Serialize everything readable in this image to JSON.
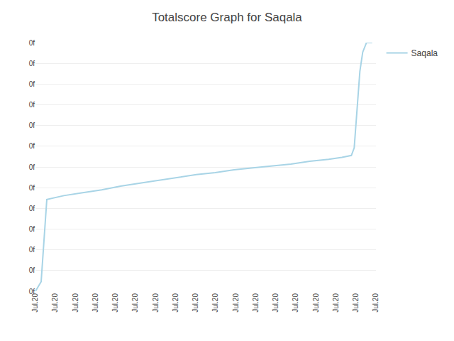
{
  "chart_data": {
    "type": "line",
    "title": "Totalscore Graph for Saqala",
    "x": [
      0,
      0.3,
      0.6,
      1.5,
      2.5,
      3.5,
      4.5,
      5.5,
      6.5,
      7.5,
      8.5,
      9.5,
      10.5,
      11.5,
      12.5,
      13.5,
      14.5,
      15.5,
      16.2,
      16.7,
      16.85,
      17.0,
      17.15,
      17.3,
      17.5,
      17.8
    ],
    "series": [
      {
        "name": "Saqala",
        "color": "#a8d4e6",
        "values": [
          0,
          0.5,
          4.8,
          5.0,
          5.15,
          5.3,
          5.5,
          5.65,
          5.8,
          5.95,
          6.1,
          6.2,
          6.35,
          6.45,
          6.55,
          6.65,
          6.8,
          6.9,
          7.0,
          7.1,
          7.5,
          9.5,
          11.5,
          12.5,
          13.0,
          13.0
        ]
      }
    ],
    "xlim": [
      0,
      18
    ],
    "xticks": [
      {
        "value": 0,
        "label": "Jul.20"
      },
      {
        "value": 1.0588235294117647,
        "label": "Jul.20"
      },
      {
        "value": 2.1176470588235294,
        "label": "Jul.20"
      },
      {
        "value": 3.176470588235294,
        "label": "Jul.20"
      },
      {
        "value": 4.235294117647059,
        "label": "Jul.20"
      },
      {
        "value": 5.294117647058823,
        "label": "Jul.20"
      },
      {
        "value": 6.352941176470588,
        "label": "Jul.20"
      },
      {
        "value": 7.411764705882353,
        "label": "Jul.20"
      },
      {
        "value": 8.470588235294118,
        "label": "Jul.20"
      },
      {
        "value": 9.529411764705882,
        "label": "Jul.20"
      },
      {
        "value": 10.588235294117647,
        "label": "Jul.20"
      },
      {
        "value": 11.647058823529411,
        "label": "Jul.20"
      },
      {
        "value": 12.705882352941176,
        "label": "Jul.20"
      },
      {
        "value": 13.764705882352942,
        "label": "Jul.20"
      },
      {
        "value": 14.823529411764707,
        "label": "Jul.20"
      },
      {
        "value": 15.882352941176471,
        "label": "Jul.20"
      },
      {
        "value": 16.941176470588236,
        "label": "Jul.20"
      },
      {
        "value": 18,
        "label": "Jul.20"
      }
    ],
    "ylim": [
      0,
      13
    ],
    "yticks": [
      {
        "value": 0,
        "label": "0f"
      },
      {
        "value": 1.0833333333333333,
        "label": "0f"
      },
      {
        "value": 2.1666666666666665,
        "label": "0f"
      },
      {
        "value": 3.25,
        "label": "0f"
      },
      {
        "value": 4.333333333333333,
        "label": "0f"
      },
      {
        "value": 5.416666666666667,
        "label": "0f"
      },
      {
        "value": 6.5,
        "label": "0f"
      },
      {
        "value": 7.583333333333333,
        "label": "0f"
      },
      {
        "value": 8.666666666666666,
        "label": "0f"
      },
      {
        "value": 9.75,
        "label": "0f"
      },
      {
        "value": 10.833333333333334,
        "label": "0f"
      },
      {
        "value": 11.916666666666666,
        "label": "0f"
      },
      {
        "value": 13,
        "label": "0f"
      }
    ],
    "grid": "y",
    "legend": "upper right"
  }
}
